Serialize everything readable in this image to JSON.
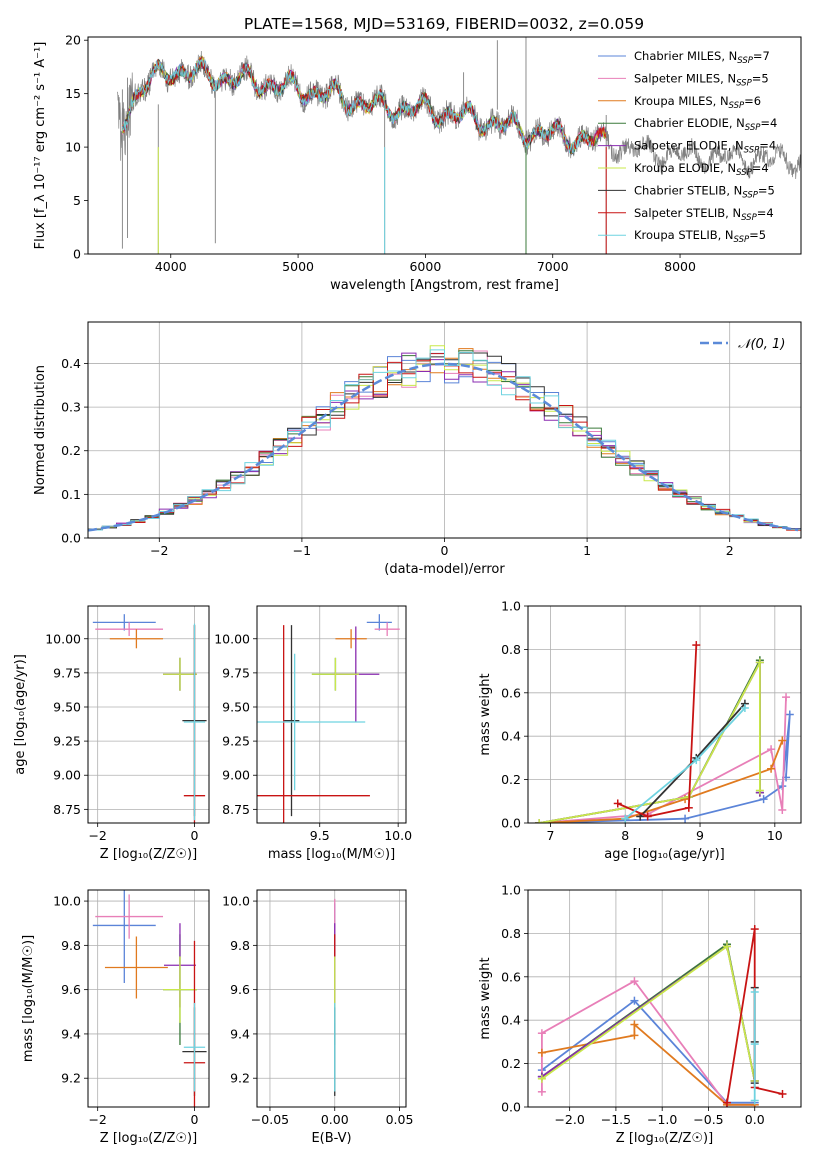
{
  "colors": {
    "chabrier_miles": "#5b84d8",
    "salpeter_miles": "#e87fb8",
    "kroupa_miles": "#e07a1f",
    "chabrier_elodie": "#3a7a3a",
    "salpeter_elodie": "#8a2bb0",
    "kroupa_elodie": "#c8e84a",
    "chabrier_stelib": "#333333",
    "salpeter_stelib": "#c81414",
    "kroupa_stelib": "#6fd3e0",
    "data": "#808080",
    "normal": "#5b8ad8"
  },
  "chart_data": [
    {
      "id": "spectrum",
      "type": "line",
      "title": "PLATE=1568, MJD=53169, FIBERID=0032, z=0.059",
      "xlabel": "wavelength [Angstrom, rest frame]",
      "ylabel": "Flux [f_λ 10⁻¹⁷ erg cm⁻² s⁻¹ A⁻¹]",
      "xlim": [
        3350,
        8950
      ],
      "ylim": [
        0,
        20.3
      ],
      "xticks": [
        "4000",
        "5000",
        "6000",
        "7000",
        "8000"
      ],
      "yticks": [
        "0",
        "5",
        "10",
        "15",
        "20"
      ],
      "legend_position": "upper right",
      "legend": [
        {
          "key": "chabrier_miles",
          "label": "Chabrier MILES, N",
          "sub": "SSP",
          "tail": "=7"
        },
        {
          "key": "salpeter_miles",
          "label": "Salpeter MILES, N",
          "sub": "SSP",
          "tail": "=5"
        },
        {
          "key": "kroupa_miles",
          "label": "Kroupa MILES, N",
          "sub": "SSP",
          "tail": "=6"
        },
        {
          "key": "chabrier_elodie",
          "label": "Chabrier ELODIE, N",
          "sub": "SSP",
          "tail": "=4"
        },
        {
          "key": "salpeter_elodie",
          "label": "Salpeter ELODIE, N",
          "sub": "SSP",
          "tail": "=4"
        },
        {
          "key": "kroupa_elodie",
          "label": "Kroupa ELODIE, N",
          "sub": "SSP",
          "tail": "=4"
        },
        {
          "key": "chabrier_stelib",
          "label": "Chabrier STELIB, N",
          "sub": "SSP",
          "tail": "=5"
        },
        {
          "key": "salpeter_stelib",
          "label": "Salpeter STELIB, N",
          "sub": "SSP",
          "tail": "=4"
        },
        {
          "key": "kroupa_stelib",
          "label": "Kroupa STELIB, N",
          "sub": "SSP",
          "tail": "=5"
        }
      ],
      "continuum": [
        [
          3600,
          11.5
        ],
        [
          3700,
          14.5
        ],
        [
          3800,
          16.0
        ],
        [
          3900,
          16.5
        ],
        [
          4000,
          17.0
        ],
        [
          4100,
          17.2
        ],
        [
          4300,
          16.6
        ],
        [
          4500,
          16.4
        ],
        [
          4800,
          15.8
        ],
        [
          5200,
          15.0
        ],
        [
          5600,
          13.8
        ],
        [
          6000,
          13.5
        ],
        [
          6400,
          12.6
        ],
        [
          6800,
          11.5
        ],
        [
          7200,
          10.8
        ],
        [
          7400,
          10.5
        ],
        [
          7600,
          9.8
        ],
        [
          8000,
          9.2
        ],
        [
          8400,
          9.0
        ],
        [
          8950,
          8.8
        ]
      ],
      "artifacts": [
        [
          3620,
          0.5,
          15.4
        ],
        [
          3660,
          1.5,
          16.5
        ],
        [
          3902,
          0.0,
          14.0
        ],
        [
          4350,
          1.0,
          16.0
        ],
        [
          5680,
          0.0,
          14.0
        ],
        [
          6300,
          13.5,
          17.0
        ],
        [
          6565,
          13.5,
          20.0
        ],
        [
          6790,
          0.0,
          20.3
        ],
        [
          7420,
          0.0,
          13.0
        ]
      ]
    },
    {
      "id": "residuals",
      "type": "histogram",
      "xlabel": "(data-model)/error",
      "ylabel": "Normed distribution",
      "xlim": [
        -2.5,
        2.5
      ],
      "ylim": [
        0,
        0.495
      ],
      "xticks": [
        "−2",
        "−1",
        "0",
        "1",
        "2"
      ],
      "yticks": [
        "0.0",
        "0.1",
        "0.2",
        "0.3",
        "0.4"
      ],
      "legend_label": "𝒩(0, 1)",
      "legend_position": "upper right"
    },
    {
      "id": "age_vs_Z",
      "type": "scatter",
      "xlabel": "Z [log₁₀(Z/Z☉)]",
      "ylabel": "age  [log₁₀(age/yr)]",
      "xlim": [
        -2.2,
        0.3
      ],
      "ylim": [
        8.65,
        10.24
      ],
      "xticks": [
        "−2",
        "0"
      ],
      "yticks": [
        "8.75",
        "9.00",
        "9.25",
        "9.50",
        "9.75",
        "10.00"
      ],
      "points": [
        {
          "key": "chabrier_miles",
          "x": -1.45,
          "y": 10.12,
          "xerr": 0.65,
          "yerr": 0.06
        },
        {
          "key": "salpeter_miles",
          "x": -1.35,
          "y": 10.07,
          "xerr": 0.7,
          "yerr": 0.05
        },
        {
          "key": "kroupa_miles",
          "x": -1.2,
          "y": 10.0,
          "xerr": 0.55,
          "yerr": 0.07
        },
        {
          "key": "chabrier_elodie",
          "x": -0.3,
          "y": 9.74,
          "xerr": 0.35,
          "yerr": 0.12
        },
        {
          "key": "salpeter_elodie",
          "x": -0.3,
          "y": 9.74,
          "xerr": 0.35,
          "yerr": 0.12
        },
        {
          "key": "kroupa_elodie",
          "x": -0.3,
          "y": 9.74,
          "xerr": 0.35,
          "yerr": 0.12
        },
        {
          "key": "chabrier_stelib",
          "x": 0.0,
          "y": 9.4,
          "xerr": 0.25,
          "yerr": 0.7
        },
        {
          "key": "salpeter_stelib",
          "x": 0.0,
          "y": 8.85,
          "xerr": 0.22,
          "yerr": 1.25
        },
        {
          "key": "kroupa_stelib",
          "x": 0.0,
          "y": 9.39,
          "xerr": 0.22,
          "yerr": 0.72
        }
      ]
    },
    {
      "id": "age_vs_mass",
      "type": "scatter",
      "xlabel": "mass [log₁₀(M/M☉)]",
      "ylabel": "",
      "xlim": [
        9.1,
        10.05
      ],
      "ylim": [
        8.65,
        10.24
      ],
      "xticks": [
        "9.5",
        "10.0"
      ],
      "yticks": [
        "8.75",
        "9.00",
        "9.25",
        "9.50",
        "9.75",
        "10.00"
      ],
      "points": [
        {
          "key": "chabrier_miles",
          "x": 9.88,
          "y": 10.12,
          "xerr": 0.08,
          "yerr": 0.06
        },
        {
          "key": "salpeter_miles",
          "x": 9.93,
          "y": 10.07,
          "xerr": 0.08,
          "yerr": 0.05
        },
        {
          "key": "kroupa_miles",
          "x": 9.7,
          "y": 10.0,
          "xerr": 0.1,
          "yerr": 0.07
        },
        {
          "key": "chabrier_elodie",
          "x": 9.6,
          "y": 9.74,
          "xerr": 0.15,
          "yerr": 0.12
        },
        {
          "key": "salpeter_elodie",
          "x": 9.73,
          "y": 9.74,
          "xerr": 0.15,
          "yerr": 0.35
        },
        {
          "key": "kroupa_elodie",
          "x": 9.6,
          "y": 9.74,
          "xerr": 0.15,
          "yerr": 0.12
        },
        {
          "key": "chabrier_stelib",
          "x": 9.32,
          "y": 9.4,
          "xerr": 0.05,
          "yerr": 0.7
        },
        {
          "key": "salpeter_stelib",
          "x": 9.27,
          "y": 8.85,
          "xerr": 0.55,
          "yerr": 1.25
        },
        {
          "key": "kroupa_stelib",
          "x": 9.34,
          "y": 9.39,
          "xerr": 0.45,
          "yerr": 0.5
        }
      ]
    },
    {
      "id": "mass_weight_vs_age",
      "type": "line",
      "xlabel": "age  [log₁₀(age/yr)]",
      "ylabel": "mass weight",
      "xlim": [
        6.7,
        10.35
      ],
      "ylim": [
        0,
        1.0
      ],
      "xticks": [
        "7",
        "8",
        "9",
        "10"
      ],
      "yticks": [
        "0.0",
        "0.2",
        "0.4",
        "0.6",
        "0.8",
        "1.0"
      ],
      "series": [
        {
          "key": "chabrier_miles",
          "x": [
            6.85,
            8.8,
            9.85,
            10.1,
            10.2,
            10.15
          ],
          "y": [
            0.0,
            0.02,
            0.11,
            0.17,
            0.5,
            0.21
          ]
        },
        {
          "key": "salpeter_miles",
          "x": [
            6.85,
            8.3,
            9.95,
            10.1,
            10.15
          ],
          "y": [
            0.0,
            0.04,
            0.34,
            0.06,
            0.58
          ]
        },
        {
          "key": "kroupa_miles",
          "x": [
            6.85,
            8.0,
            8.8,
            9.95,
            10.1
          ],
          "y": [
            0.0,
            0.02,
            0.11,
            0.25,
            0.38
          ]
        },
        {
          "key": "chabrier_elodie",
          "x": [
            6.85,
            8.85,
            9.8,
            9.8
          ],
          "y": [
            0.0,
            0.12,
            0.75,
            0.14
          ]
        },
        {
          "key": "salpeter_elodie",
          "x": [
            6.85,
            8.85,
            9.8,
            9.8
          ],
          "y": [
            0.0,
            0.12,
            0.74,
            0.14
          ]
        },
        {
          "key": "kroupa_elodie",
          "x": [
            6.85,
            8.85,
            9.8,
            9.8
          ],
          "y": [
            0.0,
            0.12,
            0.74,
            0.15
          ]
        },
        {
          "key": "chabrier_stelib",
          "x": [
            8.2,
            8.95,
            9.6
          ],
          "y": [
            0.03,
            0.3,
            0.55
          ]
        },
        {
          "key": "salpeter_stelib",
          "x": [
            7.9,
            8.3,
            8.85,
            8.95
          ],
          "y": [
            0.09,
            0.03,
            0.07,
            0.82
          ]
        },
        {
          "key": "kroupa_stelib",
          "x": [
            8.0,
            8.95,
            9.6
          ],
          "y": [
            0.02,
            0.29,
            0.53
          ]
        }
      ]
    },
    {
      "id": "mass_vs_Z",
      "type": "scatter",
      "xlabel": "Z [log₁₀(Z/Z☉)]",
      "ylabel": "mass [log₁₀(M/M☉)]",
      "xlim": [
        -2.2,
        0.3
      ],
      "ylim": [
        9.07,
        10.05
      ],
      "xticks": [
        "−2",
        "0"
      ],
      "yticks": [
        "9.2",
        "9.4",
        "9.6",
        "9.8",
        "10.0"
      ],
      "points": [
        {
          "key": "chabrier_miles",
          "x": -1.45,
          "y": 9.89,
          "xerr": 0.65,
          "yerr": 0.26
        },
        {
          "key": "salpeter_miles",
          "x": -1.35,
          "y": 9.93,
          "xerr": 0.7,
          "yerr": 0.1
        },
        {
          "key": "kroupa_miles",
          "x": -1.2,
          "y": 9.7,
          "xerr": 0.65,
          "yerr": 0.14
        },
        {
          "key": "chabrier_elodie",
          "x": -0.3,
          "y": 9.6,
          "xerr": 0.35,
          "yerr": 0.25
        },
        {
          "key": "salpeter_elodie",
          "x": -0.3,
          "y": 9.71,
          "xerr": 0.33,
          "yerr": 0.19
        },
        {
          "key": "kroupa_elodie",
          "x": -0.3,
          "y": 9.6,
          "xerr": 0.35,
          "yerr": 0.15
        },
        {
          "key": "chabrier_stelib",
          "x": 0.0,
          "y": 9.32,
          "xerr": 0.25,
          "yerr": 0.2
        },
        {
          "key": "salpeter_stelib",
          "x": 0.0,
          "y": 9.27,
          "xerr": 0.22,
          "yerr": 0.55
        },
        {
          "key": "kroupa_stelib",
          "x": 0.0,
          "y": 9.34,
          "xerr": 0.22,
          "yerr": 0.2
        }
      ]
    },
    {
      "id": "mass_vs_ebv",
      "type": "scatter",
      "xlabel": "E(B-V)",
      "ylabel": "",
      "xlim": [
        -0.06,
        0.055
      ],
      "ylim": [
        9.07,
        10.05
      ],
      "xticks": [
        "−0.05",
        "0.00",
        "0.05"
      ],
      "yticks": [
        "9.2",
        "9.4",
        "9.6",
        "9.8",
        "10.0"
      ],
      "points": [
        {
          "key": "chabrier_miles",
          "x": 0.0,
          "y": 9.89,
          "xerr": 0.0,
          "yerr": 0.1
        },
        {
          "key": "salpeter_miles",
          "x": 0.0,
          "y": 9.93,
          "xerr": 0.0,
          "yerr": 0.08
        },
        {
          "key": "kroupa_miles",
          "x": 0.0,
          "y": 9.7,
          "xerr": 0.0,
          "yerr": 0.14
        },
        {
          "key": "chabrier_elodie",
          "x": 0.0,
          "y": 9.6,
          "xerr": 0.0,
          "yerr": 0.25
        },
        {
          "key": "salpeter_elodie",
          "x": 0.0,
          "y": 9.71,
          "xerr": 0.0,
          "yerr": 0.19
        },
        {
          "key": "kroupa_elodie",
          "x": 0.0,
          "y": 9.6,
          "xerr": 0.0,
          "yerr": 0.15
        },
        {
          "key": "chabrier_stelib",
          "x": 0.0,
          "y": 9.32,
          "xerr": 0.0,
          "yerr": 0.2
        },
        {
          "key": "salpeter_stelib",
          "x": 0.0,
          "y": 9.8,
          "xerr": 0.0,
          "yerr": 0.05
        },
        {
          "key": "kroupa_stelib",
          "x": 0.0,
          "y": 9.34,
          "xerr": 0.0,
          "yerr": 0.2
        }
      ]
    },
    {
      "id": "mass_weight_vs_Z",
      "type": "line",
      "xlabel": "Z [log₁₀(Z/Z☉)]",
      "ylabel": "mass weight",
      "xlim": [
        -2.45,
        0.5
      ],
      "ylim": [
        0,
        1.0
      ],
      "xticks": [
        "−2.0",
        "−1.5",
        "−1.0",
        "−0.5",
        "0.0"
      ],
      "yticks": [
        "0.0",
        "0.2",
        "0.4",
        "0.6",
        "0.8",
        "1.0"
      ],
      "series": [
        {
          "key": "chabrier_miles",
          "x": [
            -2.3,
            -1.3,
            -0.3,
            0.0
          ],
          "y": [
            0.17,
            0.49,
            0.02,
            0.02
          ]
        },
        {
          "key": "salpeter_miles",
          "x": [
            -2.3,
            -2.3,
            -1.3,
            -0.3,
            0.0
          ],
          "y": [
            0.07,
            0.34,
            0.58,
            0.01,
            0.01
          ]
        },
        {
          "key": "kroupa_miles",
          "x": [
            -2.3,
            -1.3,
            -1.3,
            -0.3,
            0.0
          ],
          "y": [
            0.25,
            0.33,
            0.38,
            0.01,
            0.01
          ]
        },
        {
          "key": "chabrier_elodie",
          "x": [
            -2.3,
            -0.3,
            0.0
          ],
          "y": [
            0.14,
            0.75,
            0.12
          ]
        },
        {
          "key": "salpeter_elodie",
          "x": [
            -2.3,
            -0.3,
            0.0
          ],
          "y": [
            0.14,
            0.74,
            0.12
          ]
        },
        {
          "key": "kroupa_elodie",
          "x": [
            -2.3,
            -0.3,
            0.0
          ],
          "y": [
            0.13,
            0.74,
            0.12
          ]
        },
        {
          "key": "chabrier_stelib",
          "x": [
            0.0,
            0.0,
            0.0
          ],
          "y": [
            0.55,
            0.3,
            0.11
          ]
        },
        {
          "key": "salpeter_stelib",
          "x": [
            -0.3,
            0.0,
            0.0,
            0.3
          ],
          "y": [
            0.02,
            0.82,
            0.09,
            0.06
          ]
        },
        {
          "key": "kroupa_stelib",
          "x": [
            0.0,
            0.0,
            0.0
          ],
          "y": [
            0.53,
            0.29,
            0.03
          ]
        }
      ]
    }
  ]
}
